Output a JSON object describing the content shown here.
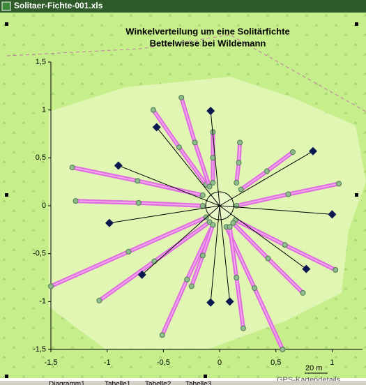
{
  "window": {
    "title": "Solitaer-Fichte-001.xls",
    "tabs": [
      "Diagramm1",
      "Tabelle1",
      "Tabelle2",
      "Tabelle3"
    ]
  },
  "map": {
    "scale": "20 m",
    "attribution": "GPS-Kartendetails"
  },
  "chart_data": {
    "type": "scatter",
    "title": "Winkelverteilung um eine Solitärfichte",
    "subtitle": "Bettelwiese bei Wildemann",
    "xlim": [
      -1.5,
      1.27
    ],
    "ylim": [
      -1.5,
      1.5
    ],
    "xticks": [
      {
        "value": -1.5,
        "label": "-1,5"
      },
      -1,
      {
        "value": -0.5,
        "label": "-0,5"
      },
      0,
      {
        "value": 0.5,
        "label": "0,5"
      },
      1
    ],
    "yticks": [
      {
        "value": -1.5,
        "label": "-1,5"
      },
      -1,
      {
        "value": -0.5,
        "label": "-0,5"
      },
      0,
      {
        "value": 0.5,
        "label": "0,5"
      },
      1,
      {
        "value": 1.5,
        "label": "1,5"
      }
    ],
    "series": [
      {
        "marker": "diamond",
        "color": "#0b1850",
        "spokes": true,
        "x": [
          -0.08,
          -0.56,
          -0.9,
          0.83,
          -0.98,
          1.0,
          -0.69,
          0.77,
          -0.08,
          0.09
        ],
        "y": [
          0.99,
          0.82,
          0.42,
          0.57,
          -0.18,
          -0.09,
          -0.72,
          -0.66,
          -1.01,
          -1.0
        ]
      },
      {
        "marker": "circle",
        "color": "#e070e0",
        "marker_color": "#8fbc8f",
        "x": [
          -0.59,
          -0.36,
          -0.12
        ],
        "y": [
          1.0,
          0.61,
          0.22
        ]
      },
      {
        "marker": "circle",
        "color": "#e070e0",
        "marker_color": "#8fbc8f",
        "x": [
          -0.34,
          -0.22,
          -0.09
        ],
        "y": [
          1.13,
          0.66,
          0.2
        ]
      },
      {
        "marker": "circle",
        "color": "#e070e0",
        "marker_color": "#8fbc8f",
        "x": [
          -0.06,
          -0.06,
          -0.06
        ],
        "y": [
          0.77,
          0.5,
          0.24
        ]
      },
      {
        "marker": "circle",
        "color": "#e070e0",
        "marker_color": "#8fbc8f",
        "x": [
          0.18,
          0.17,
          0.15
        ],
        "y": [
          0.66,
          0.45,
          0.24
        ]
      },
      {
        "marker": "circle",
        "color": "#e070e0",
        "marker_color": "#8fbc8f",
        "x": [
          -1.31,
          -0.73,
          -0.15
        ],
        "y": [
          0.4,
          0.26,
          0.11
        ]
      },
      {
        "marker": "circle",
        "color": "#e070e0",
        "marker_color": "#8fbc8f",
        "x": [
          -1.28,
          -0.72,
          -0.15
        ],
        "y": [
          0.05,
          0.03,
          0
        ]
      },
      {
        "marker": "circle",
        "color": "#e070e0",
        "marker_color": "#8fbc8f",
        "x": [
          0.65,
          0.42,
          0.19
        ],
        "y": [
          0.56,
          0.36,
          0.17
        ]
      },
      {
        "marker": "circle",
        "color": "#e070e0",
        "marker_color": "#8fbc8f",
        "x": [
          1.06,
          0.61,
          0.15
        ],
        "y": [
          0.23,
          0.12,
          0
        ]
      },
      {
        "marker": "circle",
        "color": "#e070e0",
        "marker_color": "#8fbc8f",
        "x": [
          -1.5,
          -0.81,
          -0.12
        ],
        "y": [
          -0.84,
          -0.48,
          -0.12
        ]
      },
      {
        "marker": "circle",
        "color": "#e070e0",
        "marker_color": "#8fbc8f",
        "x": [
          -1.07,
          -0.58,
          -0.09
        ],
        "y": [
          -0.99,
          -0.58,
          -0.17
        ]
      },
      {
        "marker": "circle",
        "color": "#e070e0",
        "marker_color": "#8fbc8f",
        "x": [
          -0.51,
          -0.29,
          -0.06
        ],
        "y": [
          -1.35,
          -0.77,
          -0.2
        ]
      },
      {
        "marker": "circle",
        "color": "#e070e0",
        "marker_color": "#8fbc8f",
        "x": [
          0.56,
          0.31,
          0.06
        ],
        "y": [
          -1.5,
          -0.86,
          -0.22
        ]
      },
      {
        "marker": "circle",
        "color": "#e070e0",
        "marker_color": "#8fbc8f",
        "x": [
          0.21,
          0.15,
          0.09
        ],
        "y": [
          -1.28,
          -0.75,
          -0.22
        ]
      },
      {
        "marker": "circle",
        "color": "#e070e0",
        "marker_color": "#8fbc8f",
        "x": [
          1.03,
          0.58,
          0.14
        ],
        "y": [
          -0.67,
          -0.41,
          -0.15
        ]
      },
      {
        "marker": "circle",
        "color": "#e070e0",
        "marker_color": "#8fbc8f",
        "x": [
          0.74,
          0.43,
          0.12
        ],
        "y": [
          -0.91,
          -0.55,
          -0.18
        ]
      },
      {
        "marker": "circle",
        "color": "#e070e0",
        "marker_color": "#8fbc8f",
        "x": [
          -0.25,
          -0.15,
          -0.06
        ],
        "y": [
          -0.84,
          -0.52,
          -0.2
        ]
      }
    ]
  }
}
